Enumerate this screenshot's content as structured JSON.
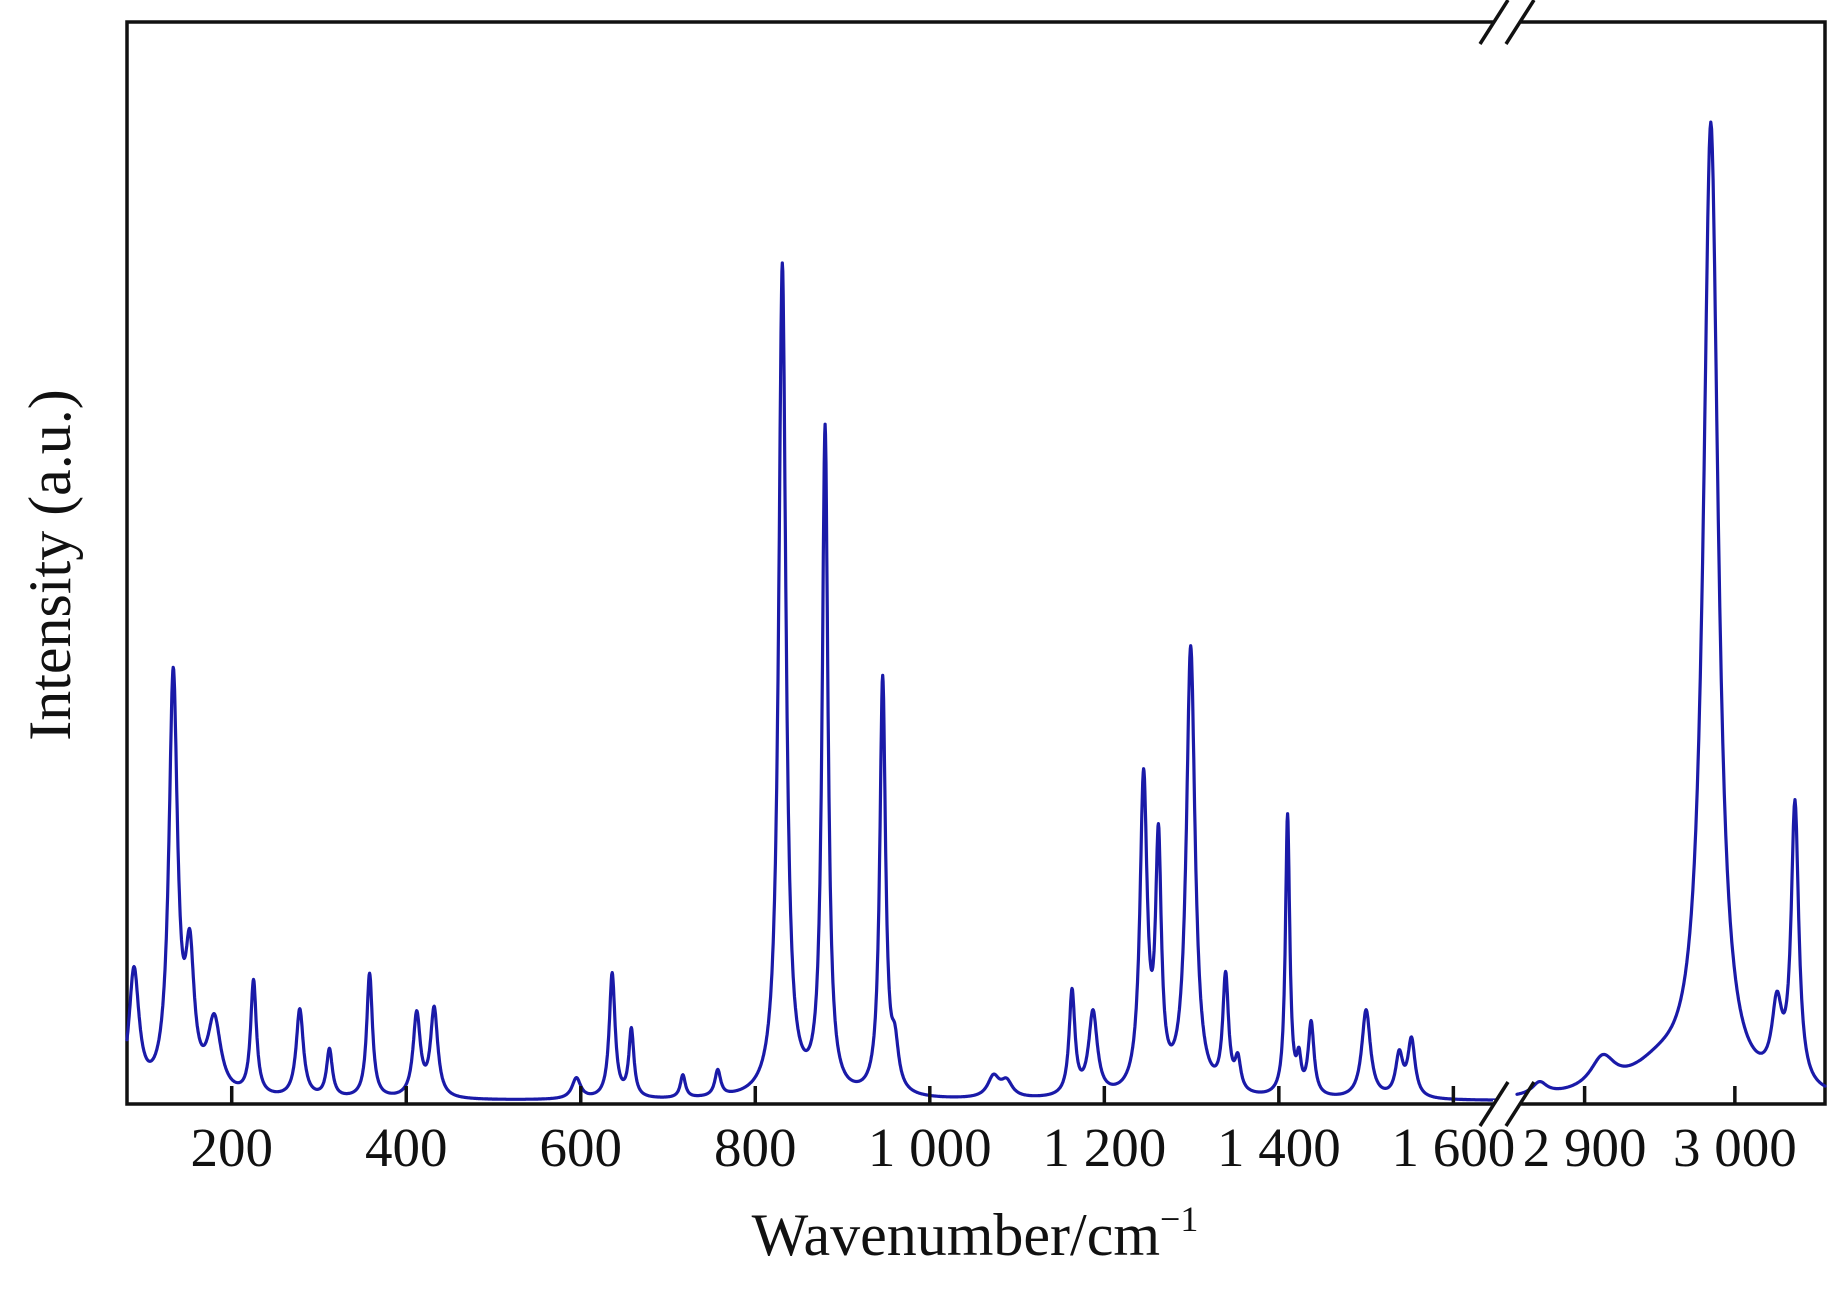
{
  "chart_data": {
    "type": "line",
    "title": "",
    "xlabel": "Wavenumber/cm",
    "xlabel_superscript": "−1",
    "ylabel": "Intensity (a.u.)",
    "y_tick_labels": "none",
    "x_axis_break": {
      "after": 1650,
      "before": 2855
    },
    "segments": [
      {
        "xlim": [
          80,
          1650
        ],
        "ticks": [
          200,
          400,
          600,
          800,
          1000,
          1200,
          1400,
          1600
        ],
        "tick_labels": [
          "200",
          "400",
          "600",
          "800",
          "1 000",
          "1 200",
          "1 400",
          "1 600"
        ]
      },
      {
        "xlim": [
          2855,
          3060
        ],
        "ticks": [
          2900,
          3000
        ],
        "tick_labels": [
          "2 900",
          "3 000"
        ]
      }
    ],
    "ylim": [
      0,
      1.04
    ],
    "grid": false,
    "legend": "none",
    "line_color": "#1a1aa8",
    "baseline": 0.003,
    "series": [
      {
        "peaks": [
          {
            "x": 88,
            "h": 0.12,
            "w": 7
          },
          {
            "x": 133,
            "h": 0.4,
            "w": 6
          },
          {
            "x": 152,
            "h": 0.12,
            "w": 6
          },
          {
            "x": 180,
            "h": 0.07,
            "w": 9
          },
          {
            "x": 225,
            "h": 0.11,
            "w": 4
          },
          {
            "x": 278,
            "h": 0.085,
            "w": 5
          },
          {
            "x": 312,
            "h": 0.046,
            "w": 4
          },
          {
            "x": 358,
            "h": 0.12,
            "w": 4
          },
          {
            "x": 412,
            "h": 0.08,
            "w": 5
          },
          {
            "x": 432,
            "h": 0.085,
            "w": 5
          },
          {
            "x": 595,
            "h": 0.02,
            "w": 6
          },
          {
            "x": 636,
            "h": 0.12,
            "w": 4
          },
          {
            "x": 658,
            "h": 0.065,
            "w": 3.5
          },
          {
            "x": 717,
            "h": 0.022,
            "w": 3.5
          },
          {
            "x": 757,
            "h": 0.025,
            "w": 4
          },
          {
            "x": 831,
            "h": 0.8,
            "w": 5
          },
          {
            "x": 880,
            "h": 0.64,
            "w": 4
          },
          {
            "x": 946,
            "h": 0.4,
            "w": 4
          },
          {
            "x": 960,
            "h": 0.04,
            "w": 5
          },
          {
            "x": 1073,
            "h": 0.02,
            "w": 8
          },
          {
            "x": 1088,
            "h": 0.015,
            "w": 8
          },
          {
            "x": 1163,
            "h": 0.1,
            "w": 4
          },
          {
            "x": 1187,
            "h": 0.08,
            "w": 6
          },
          {
            "x": 1245,
            "h": 0.3,
            "w": 5
          },
          {
            "x": 1262,
            "h": 0.23,
            "w": 4
          },
          {
            "x": 1299,
            "h": 0.43,
            "w": 6
          },
          {
            "x": 1339,
            "h": 0.11,
            "w": 4
          },
          {
            "x": 1353,
            "h": 0.03,
            "w": 4
          },
          {
            "x": 1410,
            "h": 0.27,
            "w": 3
          },
          {
            "x": 1423,
            "h": 0.03,
            "w": 3
          },
          {
            "x": 1437,
            "h": 0.07,
            "w": 4
          },
          {
            "x": 1500,
            "h": 0.085,
            "w": 6
          },
          {
            "x": 1538,
            "h": 0.04,
            "w": 5
          },
          {
            "x": 1552,
            "h": 0.055,
            "w": 5
          },
          {
            "x": 2870,
            "h": 0.012,
            "w": 6
          },
          {
            "x": 2912,
            "h": 0.03,
            "w": 10
          },
          {
            "x": 2950,
            "h": 0.025,
            "w": 25
          },
          {
            "x": 2984,
            "h": 0.93,
            "w": 6
          },
          {
            "x": 3028,
            "h": 0.07,
            "w": 4
          },
          {
            "x": 3040,
            "h": 0.27,
            "w": 3
          }
        ]
      }
    ]
  }
}
